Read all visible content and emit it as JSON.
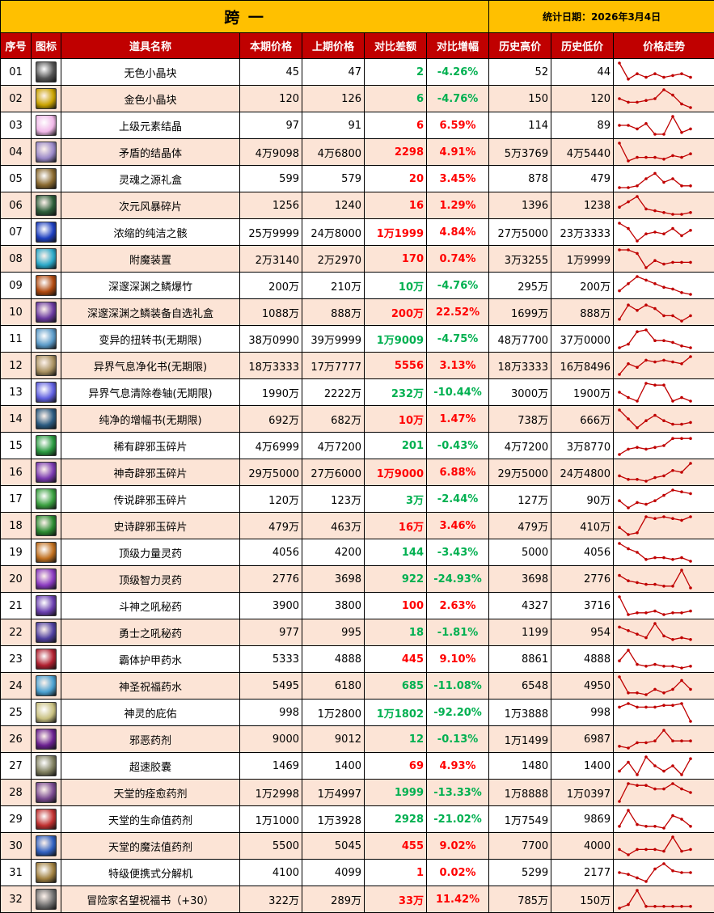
{
  "title": "跨 一",
  "date_label": "统计日期：2026年3月4日",
  "colors": {
    "title_bg": "#FFC000",
    "header_bg": "#C00000",
    "alt_row": "#FCE4D6",
    "up": "#FF0000",
    "down": "#00B050",
    "trend_line": "#C00000"
  },
  "columns": [
    "序号",
    "图标",
    "道具名称",
    "本期价格",
    "上期价格",
    "对比差额",
    "对比增幅",
    "历史高价",
    "历史低价",
    "价格走势"
  ],
  "rows": [
    {
      "no": "01",
      "icon": "colorless-crystal-icon",
      "icon_color": "#555",
      "name": "无色小晶块",
      "cur": "45",
      "prev": "47",
      "diff": "2",
      "pct": "-4.26%",
      "high": "52",
      "low": "44",
      "trend": [
        10,
        1,
        4,
        2,
        4,
        2,
        3,
        4,
        2
      ]
    },
    {
      "no": "02",
      "icon": "gold-crystal-icon",
      "icon_color": "#C9A200",
      "name": "金色小晶块",
      "cur": "120",
      "prev": "126",
      "diff": "6",
      "pct": "-4.76%",
      "high": "150",
      "low": "120",
      "trend": [
        5,
        3,
        3,
        4,
        5,
        10,
        7,
        2,
        0
      ]
    },
    {
      "no": "03",
      "icon": "element-crystal-icon",
      "icon_color": "#F0B8E8",
      "name": "上级元素结晶",
      "cur": "97",
      "prev": "91",
      "diff": "6",
      "pct": "6.59%",
      "high": "114",
      "low": "89",
      "trend": [
        5,
        5,
        3,
        6,
        0,
        0,
        10,
        1,
        3
      ]
    },
    {
      "no": "04",
      "icon": "contradiction-crystal-icon",
      "icon_color": "#9A88C8",
      "name": "矛盾的结晶体",
      "cur": "4万9098",
      "prev": "4万6800",
      "diff": "2298",
      "pct": "4.91%",
      "high": "5万3769",
      "low": "4万5440",
      "trend": [
        10,
        0,
        2,
        2,
        2,
        1,
        3,
        2,
        4
      ]
    },
    {
      "no": "05",
      "icon": "soul-box-icon",
      "icon_color": "#8A6A30",
      "name": "灵魂之源礼盒",
      "cur": "599",
      "prev": "579",
      "diff": "20",
      "pct": "3.45%",
      "high": "878",
      "low": "479",
      "trend": [
        0,
        0,
        1,
        5,
        8,
        3,
        5,
        1,
        1
      ]
    },
    {
      "no": "06",
      "icon": "storm-fragment-icon",
      "icon_color": "#2E5E3A",
      "name": "次元风暴碎片",
      "cur": "1256",
      "prev": "1240",
      "diff": "16",
      "pct": "1.29%",
      "high": "1396",
      "low": "1238",
      "trend": [
        4,
        7,
        10,
        3,
        2,
        1,
        0,
        0,
        1
      ]
    },
    {
      "no": "07",
      "icon": "pure-essence-icon",
      "icon_color": "#1E40C0",
      "name": "浓缩的纯洁之骸",
      "cur": "25万9999",
      "prev": "24万8000",
      "diff": "1万1999",
      "pct": "4.84%",
      "high": "27万5000",
      "low": "23万3333",
      "trend": [
        10,
        7,
        0,
        4,
        5,
        4,
        7,
        3,
        6
      ]
    },
    {
      "no": "08",
      "icon": "enchant-device-icon",
      "icon_color": "#2AA8C8",
      "name": "附魔装置",
      "cur": "2万3140",
      "prev": "2万2970",
      "diff": "170",
      "pct": "0.74%",
      "high": "3万3255",
      "low": "1万9999",
      "trend": [
        10,
        10,
        8,
        0,
        4,
        2,
        3,
        3,
        3
      ]
    },
    {
      "no": "09",
      "icon": "abyss-firecracker-icon",
      "icon_color": "#B04A10",
      "name": "深邃深渊之鳞爆竹",
      "cur": "200万",
      "prev": "210万",
      "diff": "10万",
      "pct": "-4.76%",
      "high": "295万",
      "low": "200万",
      "trend": [
        2,
        6,
        10,
        8,
        6,
        4,
        3,
        1,
        0
      ]
    },
    {
      "no": "10",
      "icon": "abyss-gear-box-icon",
      "icon_color": "#6A3AA0",
      "name": "深邃深渊之鳞装备自选礼盒",
      "cur": "1088万",
      "prev": "888万",
      "diff": "200万",
      "pct": "22.52%",
      "high": "1699万",
      "low": "888万",
      "trend": [
        1,
        9,
        6,
        9,
        7,
        3,
        3,
        0,
        3
      ]
    },
    {
      "no": "11",
      "icon": "mutation-book-icon",
      "icon_color": "#5A9AC8",
      "name": "变异的扭转书(无期限)",
      "cur": "38万0990",
      "prev": "39万9999",
      "diff": "1万9009",
      "pct": "-4.75%",
      "high": "48万7700",
      "low": "37万0000",
      "trend": [
        0,
        2,
        9,
        10,
        4,
        4,
        3,
        1,
        0
      ]
    },
    {
      "no": "12",
      "icon": "purify-book-icon",
      "icon_color": "#A89060",
      "name": "异界气息净化书(无期限)",
      "cur": "18万3333",
      "prev": "17万7777",
      "diff": "5556",
      "pct": "3.13%",
      "high": "18万3333",
      "low": "16万8496",
      "trend": [
        0,
        6,
        4,
        8,
        7,
        8,
        7,
        6,
        10
      ]
    },
    {
      "no": "13",
      "icon": "clear-scroll-icon",
      "icon_color": "#6060E0",
      "name": "异界气息清除卷轴(无期限)",
      "cur": "1990万",
      "prev": "2222万",
      "diff": "232万",
      "pct": "-10.44%",
      "high": "3000万",
      "low": "1900万",
      "trend": [
        5,
        2,
        0,
        10,
        9,
        9,
        0,
        2,
        0
      ]
    },
    {
      "no": "14",
      "icon": "amplify-book-icon",
      "icon_color": "#2A5A80",
      "name": "纯净的增幅书(无期限)",
      "cur": "692万",
      "prev": "682万",
      "diff": "10万",
      "pct": "1.47%",
      "high": "738万",
      "low": "666万",
      "trend": [
        10,
        5,
        0,
        4,
        7,
        4,
        2,
        2,
        3
      ]
    },
    {
      "no": "15",
      "icon": "rare-jade-icon",
      "icon_color": "#2A9A40",
      "name": "稀有辟邪玉碎片",
      "cur": "4万6999",
      "prev": "4万7200",
      "diff": "201",
      "pct": "-0.43%",
      "high": "4万7200",
      "low": "3万8770",
      "trend": [
        0,
        3,
        4,
        3,
        4,
        5,
        9,
        9,
        9
      ]
    },
    {
      "no": "16",
      "icon": "epic-jade-icon",
      "icon_color": "#7A3AB0",
      "name": "神奇辟邪玉碎片",
      "cur": "29万5000",
      "prev": "27万6000",
      "diff": "1万9000",
      "pct": "6.88%",
      "high": "29万5000",
      "low": "24万4800",
      "trend": [
        3,
        1,
        1,
        0,
        2,
        3,
        6,
        5,
        10
      ]
    },
    {
      "no": "17",
      "icon": "legend-jade-icon",
      "icon_color": "#3AA040",
      "name": "传说辟邪玉碎片",
      "cur": "120万",
      "prev": "123万",
      "diff": "3万",
      "pct": "-2.44%",
      "high": "127万",
      "low": "90万",
      "trend": [
        4,
        0,
        3,
        2,
        4,
        7,
        10,
        9,
        8
      ]
    },
    {
      "no": "18",
      "icon": "myth-jade-icon",
      "icon_color": "#2A8A30",
      "name": "史诗辟邪玉碎片",
      "cur": "479万",
      "prev": "463万",
      "diff": "16万",
      "pct": "3.46%",
      "high": "479万",
      "low": "410万",
      "trend": [
        4,
        0,
        1,
        10,
        9,
        10,
        9,
        8,
        10
      ]
    },
    {
      "no": "19",
      "icon": "strength-potion-icon",
      "icon_color": "#C07020",
      "name": "顶级力量灵药",
      "cur": "4056",
      "prev": "4200",
      "diff": "144",
      "pct": "-3.43%",
      "high": "5000",
      "low": "4056",
      "trend": [
        10,
        7,
        5,
        1,
        2,
        2,
        1,
        2,
        0
      ]
    },
    {
      "no": "20",
      "icon": "intellect-potion-icon",
      "icon_color": "#8A3AC0",
      "name": "顶级智力灵药",
      "cur": "2776",
      "prev": "3698",
      "diff": "922",
      "pct": "-24.93%",
      "high": "3698",
      "low": "2776",
      "trend": [
        7,
        4,
        3,
        2,
        2,
        1,
        1,
        10,
        0
      ]
    },
    {
      "no": "21",
      "icon": "warrior-elixir-icon",
      "icon_color": "#6A40B0",
      "name": "斗神之吼秘药",
      "cur": "3900",
      "prev": "3800",
      "diff": "100",
      "pct": "2.63%",
      "high": "4327",
      "low": "3716",
      "trend": [
        10,
        0,
        1,
        1,
        2,
        0,
        1,
        1,
        2
      ]
    },
    {
      "no": "22",
      "icon": "brave-elixir-icon",
      "icon_color": "#5040A0",
      "name": "勇士之吼秘药",
      "cur": "977",
      "prev": "995",
      "diff": "18",
      "pct": "-1.81%",
      "high": "1199",
      "low": "954",
      "trend": [
        8,
        6,
        4,
        2,
        10,
        3,
        1,
        2,
        1
      ]
    },
    {
      "no": "23",
      "icon": "armor-potion-icon",
      "icon_color": "#B02030",
      "name": "霸体护甲药水",
      "cur": "5333",
      "prev": "4888",
      "diff": "445",
      "pct": "9.10%",
      "high": "8861",
      "low": "4888",
      "trend": [
        4,
        10,
        2,
        1,
        2,
        1,
        1,
        0,
        1
      ]
    },
    {
      "no": "24",
      "icon": "holy-potion-icon",
      "icon_color": "#4AA0D0",
      "name": "神圣祝福药水",
      "cur": "5495",
      "prev": "6180",
      "diff": "685",
      "pct": "-11.08%",
      "high": "6548",
      "low": "4950",
      "trend": [
        10,
        1,
        1,
        0,
        3,
        1,
        3,
        8,
        3
      ]
    },
    {
      "no": "25",
      "icon": "divine-blessing-icon",
      "icon_color": "#C8C080",
      "name": "神灵的庇佑",
      "cur": "998",
      "prev": "1万2800",
      "diff": "1万1802",
      "pct": "-92.20%",
      "high": "1万3888",
      "low": "998",
      "trend": [
        8,
        10,
        8,
        8,
        8,
        9,
        9,
        10,
        0
      ]
    },
    {
      "no": "26",
      "icon": "evil-potion-icon",
      "icon_color": "#6A2090",
      "name": "邪恶药剂",
      "cur": "9000",
      "prev": "9012",
      "diff": "12",
      "pct": "-0.13%",
      "high": "1万1499",
      "low": "6987",
      "trend": [
        1,
        0,
        3,
        3,
        4,
        10,
        4,
        4,
        4
      ]
    },
    {
      "no": "27",
      "icon": "speed-capsule-icon",
      "icon_color": "#808060",
      "name": "超速胶囊",
      "cur": "1469",
      "prev": "1400",
      "diff": "69",
      "pct": "4.93%",
      "high": "1480",
      "low": "1400",
      "trend": [
        2,
        7,
        0,
        10,
        5,
        2,
        5,
        0,
        9
      ]
    },
    {
      "no": "28",
      "icon": "heal-potion-icon",
      "icon_color": "#7A4A90",
      "name": "天堂的痊愈药剂",
      "cur": "1万2998",
      "prev": "1万4997",
      "diff": "1999",
      "pct": "-13.33%",
      "high": "1万8888",
      "low": "1万0397",
      "trend": [
        0,
        10,
        9,
        9,
        7,
        7,
        10,
        7,
        5
      ]
    },
    {
      "no": "29",
      "icon": "hp-potion-icon",
      "icon_color": "#C03030",
      "name": "天堂的生命值药剂",
      "cur": "1万1000",
      "prev": "1万3928",
      "diff": "2928",
      "pct": "-21.02%",
      "high": "1万7549",
      "low": "9869",
      "trend": [
        1,
        10,
        2,
        1,
        1,
        0,
        7,
        5,
        1
      ]
    },
    {
      "no": "30",
      "icon": "mp-potion-icon",
      "icon_color": "#3060C0",
      "name": "天堂的魔法值药剂",
      "cur": "5500",
      "prev": "5045",
      "diff": "455",
      "pct": "9.02%",
      "high": "7700",
      "low": "4000",
      "trend": [
        3,
        0,
        3,
        3,
        3,
        2,
        10,
        2,
        3
      ]
    },
    {
      "no": "31",
      "icon": "decomposer-icon",
      "icon_color": "#A08040",
      "name": "特级便携式分解机",
      "cur": "4100",
      "prev": "4099",
      "diff": "1",
      "pct": "0.02%",
      "high": "5299",
      "low": "2177",
      "trend": [
        5,
        4,
        2,
        0,
        7,
        10,
        6,
        5,
        5
      ]
    },
    {
      "no": "32",
      "icon": "blessing-book-icon",
      "icon_color": "#707070",
      "name": "冒险家名望祝福书（+30）",
      "cur": "322万",
      "prev": "289万",
      "diff": "33万",
      "pct": "11.42%",
      "high": "785万",
      "low": "150万",
      "trend": [
        0,
        2,
        10,
        1,
        1,
        1,
        1,
        1,
        1
      ]
    }
  ]
}
